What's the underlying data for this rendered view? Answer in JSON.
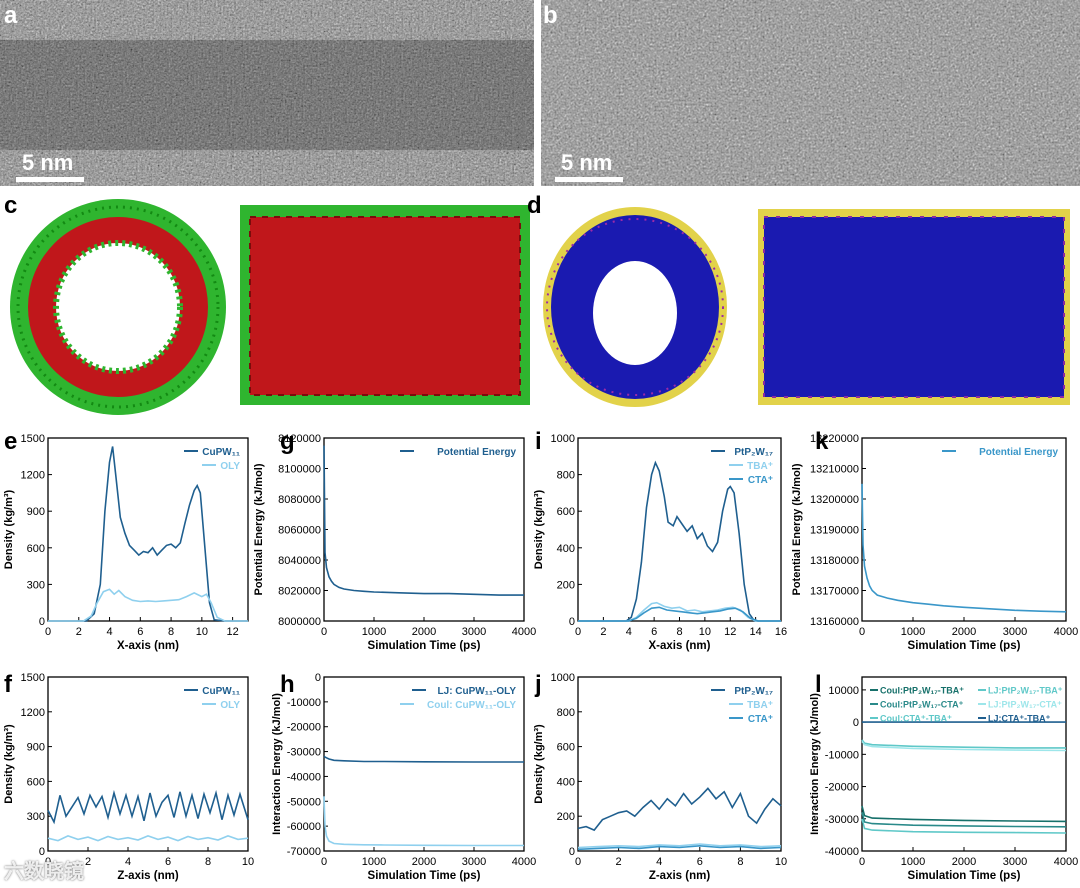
{
  "panels": {
    "a": {
      "letter": "a",
      "scale": "5 nm"
    },
    "b": {
      "letter": "b",
      "scale": "5 nm"
    },
    "c": {
      "letter": "c"
    },
    "d": {
      "letter": "d"
    }
  },
  "colors": {
    "dark": "#1f5f8f",
    "mid": "#3a97c9",
    "light": "#8fd0ee",
    "teal1": "#16706a",
    "teal2": "#2a8a8a",
    "teal3": "#5fc8c8",
    "cyanlight": "#9de6ea",
    "red": "#c0171b",
    "green": "#22aa22",
    "blue": "#1a1ab0",
    "yellow": "#e0d040"
  },
  "watermark": "六数晓镜",
  "chart_data": [
    {
      "id": "e",
      "letter": "e",
      "type": "line",
      "xlabel": "X-axis (nm)",
      "ylabel": "Density (kg/m³)",
      "xlim": [
        0,
        13
      ],
      "ylim": [
        0,
        1500
      ],
      "xticks": [
        "0",
        "2",
        "4",
        "6",
        "8",
        "10",
        "12"
      ],
      "yticks": [
        "0",
        "300",
        "600",
        "900",
        "1200",
        "1500"
      ],
      "legend": [
        "CuPW₁₁",
        "OLY"
      ],
      "series": [
        {
          "name": "CuPW₁₁",
          "color_key": "dark",
          "x": [
            0,
            2.5,
            3.0,
            3.4,
            3.7,
            4.0,
            4.2,
            4.4,
            4.7,
            5.0,
            5.3,
            5.6,
            5.9,
            6.2,
            6.5,
            6.8,
            7.1,
            7.4,
            7.7,
            8.0,
            8.3,
            8.6,
            8.9,
            9.2,
            9.5,
            9.7,
            9.9,
            10.2,
            10.5,
            10.8,
            11.5,
            13
          ],
          "y": [
            0,
            0,
            60,
            300,
            900,
            1300,
            1430,
            1200,
            850,
            720,
            620,
            580,
            540,
            570,
            560,
            600,
            540,
            580,
            620,
            630,
            600,
            640,
            800,
            950,
            1070,
            1110,
            1050,
            600,
            150,
            10,
            0,
            0
          ]
        },
        {
          "name": "OLY",
          "color_key": "light",
          "x": [
            0,
            2.3,
            2.8,
            3.2,
            3.6,
            4.0,
            4.3,
            4.6,
            5.0,
            5.5,
            6.0,
            6.5,
            7.0,
            7.5,
            8.0,
            8.5,
            9.0,
            9.5,
            10.0,
            10.3,
            10.6,
            11.0,
            11.5,
            13
          ],
          "y": [
            0,
            0,
            40,
            150,
            240,
            260,
            220,
            250,
            200,
            170,
            160,
            165,
            160,
            165,
            170,
            175,
            200,
            230,
            200,
            220,
            150,
            30,
            0,
            0
          ]
        }
      ]
    },
    {
      "id": "g",
      "letter": "g",
      "type": "line",
      "xlabel": "Simulation Time (ps)",
      "ylabel": "Potential Energy (kJ/mol)",
      "xlim": [
        0,
        4000
      ],
      "ylim": [
        8000000,
        8120000
      ],
      "xticks": [
        "0",
        "1000",
        "2000",
        "3000",
        "4000"
      ],
      "yticks": [
        "8000000",
        "8020000",
        "8040000",
        "8060000",
        "8080000",
        "8100000",
        "8120000"
      ],
      "legend": [
        "Potential Energy"
      ],
      "series": [
        {
          "name": "Potential Energy",
          "color_key": "dark",
          "x": [
            0,
            20,
            50,
            100,
            150,
            200,
            300,
            400,
            600,
            800,
            1000,
            1500,
            2000,
            2500,
            3000,
            3500,
            4000
          ],
          "y": [
            8115000,
            8045000,
            8035000,
            8029000,
            8026000,
            8024000,
            8022000,
            8021000,
            8020000,
            8019500,
            8019000,
            8018500,
            8018000,
            8018000,
            8017500,
            8017000,
            8017000
          ]
        }
      ]
    },
    {
      "id": "i",
      "letter": "i",
      "type": "line",
      "xlabel": "X-axis (nm)",
      "ylabel": "Density (kg/m³)",
      "xlim": [
        0,
        16
      ],
      "ylim": [
        0,
        1000
      ],
      "xticks": [
        "0",
        "2",
        "4",
        "6",
        "8",
        "10",
        "12",
        "14",
        "16"
      ],
      "yticks": [
        "0",
        "200",
        "400",
        "600",
        "800",
        "1000"
      ],
      "legend": [
        "PtP₂W₁₇",
        "TBA⁺",
        "CTA⁺"
      ],
      "series": [
        {
          "name": "PtP₂W₁₇",
          "color_key": "dark",
          "x": [
            0,
            3.8,
            4.2,
            4.6,
            5.0,
            5.4,
            5.8,
            6.1,
            6.4,
            6.8,
            7.1,
            7.5,
            7.8,
            8.2,
            8.6,
            9.0,
            9.4,
            9.8,
            10.2,
            10.6,
            11.0,
            11.4,
            11.8,
            12.0,
            12.3,
            12.7,
            13.1,
            13.5,
            13.9,
            16
          ],
          "y": [
            0,
            0,
            20,
            120,
            320,
            620,
            800,
            865,
            820,
            680,
            540,
            520,
            570,
            530,
            490,
            520,
            450,
            480,
            410,
            380,
            430,
            600,
            720,
            735,
            700,
            480,
            200,
            40,
            0,
            0
          ]
        },
        {
          "name": "TBA⁺",
          "color_key": "light",
          "x": [
            0,
            4.0,
            4.6,
            5.2,
            5.8,
            6.2,
            6.8,
            7.4,
            8.0,
            8.6,
            9.2,
            9.8,
            10.4,
            11.0,
            11.6,
            12.2,
            12.8,
            13.4,
            14.0,
            16
          ],
          "y": [
            0,
            0,
            20,
            60,
            95,
            100,
            80,
            70,
            75,
            55,
            60,
            50,
            55,
            60,
            70,
            75,
            60,
            20,
            0,
            0
          ]
        },
        {
          "name": "CTA⁺",
          "color_key": "mid",
          "x": [
            0,
            4.0,
            4.6,
            5.2,
            5.8,
            6.4,
            7.0,
            7.6,
            8.2,
            8.8,
            9.4,
            10.0,
            10.6,
            11.2,
            11.8,
            12.4,
            13.0,
            13.6,
            14.2,
            16
          ],
          "y": [
            0,
            0,
            15,
            45,
            70,
            75,
            60,
            55,
            50,
            45,
            40,
            45,
            50,
            55,
            65,
            70,
            50,
            15,
            0,
            0
          ]
        }
      ]
    },
    {
      "id": "k",
      "letter": "k",
      "type": "line",
      "xlabel": "Simulation Time (ps)",
      "ylabel": "Potential Energy (kJ/mol)",
      "xlim": [
        0,
        4000
      ],
      "ylim": [
        13160000,
        13220000
      ],
      "xticks": [
        "0",
        "1000",
        "2000",
        "3000",
        "4000"
      ],
      "yticks": [
        "13160000",
        "13170000",
        "13180000",
        "13190000",
        "13200000",
        "13210000",
        "13220000"
      ],
      "legend": [
        "Potential Energy"
      ],
      "series": [
        {
          "name": "Potential Energy",
          "color_key": "mid",
          "x": [
            0,
            20,
            50,
            100,
            150,
            200,
            300,
            400,
            500,
            700,
            1000,
            1300,
            1600,
            2000,
            2500,
            3000,
            3500,
            4000
          ],
          "y": [
            13205000,
            13185000,
            13178000,
            13174000,
            13171500,
            13170000,
            13168500,
            13168000,
            13167500,
            13166800,
            13166000,
            13165500,
            13165000,
            13164500,
            13164000,
            13163500,
            13163200,
            13163000
          ]
        }
      ]
    },
    {
      "id": "f",
      "letter": "f",
      "type": "line",
      "xlabel": "Z-axis (nm)",
      "ylabel": "Density (kg/m³)",
      "xlim": [
        0,
        10
      ],
      "ylim": [
        0,
        1500
      ],
      "xticks": [
        "0",
        "2",
        "4",
        "6",
        "8",
        "10"
      ],
      "yticks": [
        "0",
        "300",
        "600",
        "900",
        "1200",
        "1500"
      ],
      "legend": [
        "CuPW₁₁",
        "OLY"
      ],
      "series": [
        {
          "name": "CuPW₁₁",
          "color_key": "dark",
          "x": [
            0,
            0.3,
            0.6,
            0.9,
            1.2,
            1.5,
            1.8,
            2.1,
            2.4,
            2.7,
            3.0,
            3.3,
            3.6,
            3.9,
            4.2,
            4.5,
            4.8,
            5.1,
            5.4,
            5.7,
            6.0,
            6.3,
            6.6,
            6.9,
            7.2,
            7.5,
            7.8,
            8.1,
            8.4,
            8.7,
            9.0,
            9.3,
            9.6,
            10
          ],
          "y": [
            350,
            250,
            480,
            300,
            380,
            460,
            320,
            480,
            380,
            470,
            290,
            500,
            320,
            480,
            300,
            470,
            260,
            500,
            300,
            420,
            480,
            290,
            510,
            300,
            480,
            280,
            490,
            330,
            500,
            270,
            480,
            310,
            490,
            270
          ]
        },
        {
          "name": "OLY",
          "color_key": "light",
          "x": [
            0,
            0.5,
            1.0,
            1.5,
            2.0,
            2.5,
            3.0,
            3.5,
            4.0,
            4.5,
            5.0,
            5.5,
            6.0,
            6.5,
            7.0,
            7.5,
            8.0,
            8.5,
            9.0,
            9.5,
            10
          ],
          "y": [
            110,
            90,
            130,
            100,
            120,
            90,
            125,
            100,
            115,
            95,
            130,
            100,
            120,
            90,
            125,
            100,
            115,
            95,
            130,
            100,
            110
          ]
        }
      ]
    },
    {
      "id": "h",
      "letter": "h",
      "type": "line",
      "xlabel": "Simulation Time (ps)",
      "ylabel": "Interaction Energy (kJ/mol)",
      "xlim": [
        0,
        4000
      ],
      "ylim": [
        -70000,
        0
      ],
      "xticks": [
        "0",
        "1000",
        "2000",
        "3000",
        "4000"
      ],
      "yticks": [
        "0",
        "-10000",
        "-20000",
        "-30000",
        "-40000",
        "-50000",
        "-60000",
        "-70000"
      ],
      "legend": [
        "LJ: CuPW₁₁-OLY",
        "Coul: CuPW₁₁-OLY"
      ],
      "series": [
        {
          "name": "LJ: CuPW₁₁-OLY",
          "color_key": "dark",
          "x": [
            0,
            50,
            100,
            200,
            400,
            800,
            1200,
            2000,
            3000,
            4000
          ],
          "y": [
            -32000,
            -32500,
            -33000,
            -33500,
            -33700,
            -34000,
            -34000,
            -34100,
            -34200,
            -34200
          ]
        },
        {
          "name": "Coul: CuPW₁₁-OLY",
          "color_key": "light",
          "x": [
            0,
            20,
            50,
            100,
            200,
            400,
            800,
            1200,
            2000,
            3000,
            4000
          ],
          "y": [
            -48000,
            -60000,
            -64000,
            -66000,
            -67000,
            -67300,
            -67500,
            -67600,
            -67700,
            -67800,
            -67800
          ]
        }
      ]
    },
    {
      "id": "j",
      "letter": "j",
      "type": "line",
      "xlabel": "Z-axis (nm)",
      "ylabel": "Density (kg/m³)",
      "xlim": [
        0,
        10
      ],
      "ylim": [
        0,
        1000
      ],
      "xticks": [
        "0",
        "2",
        "4",
        "6",
        "8",
        "10"
      ],
      "yticks": [
        "0",
        "200",
        "400",
        "600",
        "800",
        "1000"
      ],
      "legend": [
        "PtP₂W₁₇",
        "TBA⁺",
        "CTA⁺"
      ],
      "series": [
        {
          "name": "PtP₂W₁₇",
          "color_key": "dark",
          "x": [
            0,
            0.4,
            0.8,
            1.2,
            1.6,
            2.0,
            2.4,
            2.8,
            3.2,
            3.6,
            4.0,
            4.4,
            4.8,
            5.2,
            5.6,
            6.0,
            6.4,
            6.8,
            7.2,
            7.6,
            8.0,
            8.4,
            8.8,
            9.2,
            9.6,
            10
          ],
          "y": [
            130,
            140,
            120,
            180,
            200,
            220,
            230,
            200,
            250,
            290,
            240,
            300,
            260,
            330,
            270,
            310,
            360,
            300,
            340,
            250,
            330,
            200,
            160,
            240,
            300,
            260
          ]
        },
        {
          "name": "TBA⁺",
          "color_key": "light",
          "x": [
            0,
            1,
            2,
            3,
            4,
            5,
            6,
            7,
            8,
            9,
            10
          ],
          "y": [
            20,
            25,
            30,
            25,
            35,
            30,
            40,
            30,
            35,
            25,
            30
          ]
        },
        {
          "name": "CTA⁺",
          "color_key": "mid",
          "x": [
            0,
            1,
            2,
            3,
            4,
            5,
            6,
            7,
            8,
            9,
            10
          ],
          "y": [
            10,
            15,
            20,
            15,
            25,
            20,
            30,
            20,
            25,
            15,
            20
          ]
        }
      ]
    },
    {
      "id": "l",
      "letter": "l",
      "type": "line",
      "xlabel": "Simulation Time (ps)",
      "ylabel": "Interaction Energy (kJ/mol)",
      "xlim": [
        0,
        4000
      ],
      "ylim": [
        -40000,
        14000
      ],
      "xticks": [
        "0",
        "1000",
        "2000",
        "3000",
        "4000"
      ],
      "yticks": [
        "10000",
        "0",
        "-10000",
        "-20000",
        "-30000",
        "-40000"
      ],
      "legend": [
        "Coul:PtP₂W₁₇-TBA⁺",
        "LJ:PtP₂W₁₇-TBA⁺",
        "Coul:PtP₂W₁₇-CTA⁺",
        "LJ:PtP₂W₁₇-CTA⁺",
        "Coul:CTA⁺-TBA⁺",
        "LJ:CTA⁺-TBA⁺"
      ],
      "series": [
        {
          "name": "Coul:PtP₂W₁₇-TBA⁺",
          "color_key": "teal1",
          "x": [
            0,
            50,
            200,
            1000,
            2000,
            3000,
            4000
          ],
          "y": [
            -26000,
            -29000,
            -29800,
            -30200,
            -30500,
            -30700,
            -30800
          ]
        },
        {
          "name": "LJ:PtP₂W₁₇-TBA⁺",
          "color_key": "teal3",
          "x": [
            0,
            50,
            200,
            1000,
            2000,
            3000,
            4000
          ],
          "y": [
            -5500,
            -6500,
            -7000,
            -7500,
            -7800,
            -8000,
            -8000
          ]
        },
        {
          "name": "Coul:PtP₂W₁₇-CTA⁺",
          "color_key": "teal2",
          "x": [
            0,
            50,
            200,
            1000,
            2000,
            3000,
            4000
          ],
          "y": [
            -28000,
            -31000,
            -31500,
            -32000,
            -32200,
            -32400,
            -32500
          ]
        },
        {
          "name": "LJ:PtP₂W₁₇-CTA⁺",
          "color_key": "cyanlight",
          "x": [
            0,
            50,
            200,
            1000,
            2000,
            3000,
            4000
          ],
          "y": [
            -6000,
            -7000,
            -7600,
            -8200,
            -8500,
            -8700,
            -8800
          ]
        },
        {
          "name": "Coul:CTA⁺-TBA⁺",
          "color_key": "teal3",
          "x": [
            0,
            50,
            200,
            1000,
            2000,
            3000,
            4000
          ],
          "y": [
            -30000,
            -33000,
            -33500,
            -34000,
            -34200,
            -34300,
            -34400
          ]
        },
        {
          "name": "LJ:CTA⁺-TBA⁺",
          "color_key": "dark",
          "x": [
            0,
            4000
          ],
          "y": [
            0,
            0
          ]
        }
      ]
    }
  ]
}
